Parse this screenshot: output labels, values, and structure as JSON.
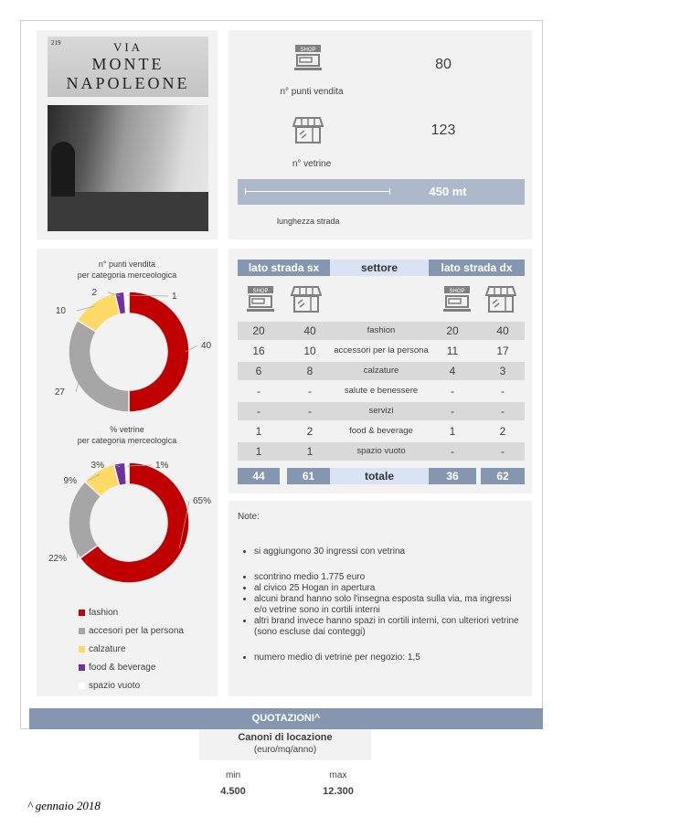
{
  "photo": {
    "sign_number": "219",
    "sign_line1": "VIA",
    "sign_line2": "MONTE",
    "sign_line3": "NAPOLEONE"
  },
  "summary": {
    "punti_vendita_value": "80",
    "punti_vendita_label": "n° punti vendita",
    "vetrine_value": "123",
    "vetrine_label": "n° vetrine",
    "length_value": "450 mt",
    "length_label": "lunghezza strada",
    "shop_icon_text": "SHOP"
  },
  "colors": {
    "fashion": "#c00000",
    "accessori": "#a6a6a6",
    "calzature": "#ffd966",
    "food": "#7030a0",
    "spazio": "#ffffff",
    "header": "#8496b0",
    "header_mid": "#dae3f3"
  },
  "chart_data": [
    {
      "type": "pie",
      "title": "n° punti vendita\nper categoria merceologica",
      "title_line1": "n° punti vendita",
      "title_line2": "per categoria merceologica",
      "categories": [
        "fashion",
        "accesori per la persona",
        "calzature",
        "food & beverage",
        "spazio vuoto"
      ],
      "values": [
        40,
        27,
        10,
        2,
        1
      ],
      "labels": [
        "40",
        "27",
        "10",
        "2",
        "1"
      ]
    },
    {
      "type": "pie",
      "title_line1": "% vetrine",
      "title_line2": "per categoria merceologica",
      "categories": [
        "fashion",
        "accesori per la persona",
        "calzature",
        "food & beverage",
        "spazio vuoto"
      ],
      "values": [
        65,
        22,
        9,
        3,
        1
      ],
      "labels": [
        "65%",
        "22%",
        "9%",
        "3%",
        "1%"
      ]
    }
  ],
  "legend": [
    "fashion",
    "accesori per la persona",
    "calzature",
    "food & beverage",
    "spazio vuoto"
  ],
  "table": {
    "header_left": "lato strada sx",
    "header_mid": "settore",
    "header_right": "lato strada dx",
    "rows": [
      {
        "sx_pv": "20",
        "sx_v": "40",
        "settore": "fashion",
        "dx_pv": "20",
        "dx_v": "40"
      },
      {
        "sx_pv": "16",
        "sx_v": "10",
        "settore": "accessori per la persona",
        "dx_pv": "11",
        "dx_v": "17"
      },
      {
        "sx_pv": "6",
        "sx_v": "8",
        "settore": "calzature",
        "dx_pv": "4",
        "dx_v": "3"
      },
      {
        "sx_pv": "-",
        "sx_v": "-",
        "settore": "salute e benessere",
        "dx_pv": "-",
        "dx_v": "-"
      },
      {
        "sx_pv": "-",
        "sx_v": "-",
        "settore": "servizi",
        "dx_pv": "-",
        "dx_v": "-"
      },
      {
        "sx_pv": "1",
        "sx_v": "2",
        "settore": "food & beverage",
        "dx_pv": "1",
        "dx_v": "2"
      },
      {
        "sx_pv": "1",
        "sx_v": "1",
        "settore": "spazio vuoto",
        "dx_pv": "-",
        "dx_v": "-"
      }
    ],
    "total": {
      "sx_pv": "44",
      "sx_v": "61",
      "label": "totale",
      "dx_pv": "36",
      "dx_v": "62"
    }
  },
  "notes": {
    "title": "Note:",
    "items": [
      "si aggiungono 30 ingressi con vetrina",
      "scontrino medio 1.775 euro",
      "al civico 25 Hogan in apertura",
      "alcuni brand hanno solo l'insegna esposta sulla via, ma ingressi e/o vetrine sono in cortili interni",
      "altri brand invece hanno spazi in cortili interni, con ulteriori vetrine (sono escluse dai conteggi)",
      "numero medio di vetrine per negozio: 1,5"
    ]
  },
  "quotazioni": {
    "title": "QUOTAZIONI^",
    "canoni_title": "Canoni di locazione",
    "canoni_unit": "(euro/mq/anno)",
    "min_label": "min",
    "max_label": "max",
    "min_value": "4.500",
    "max_value": "12.300"
  },
  "footnote": "^ gennaio 2018"
}
